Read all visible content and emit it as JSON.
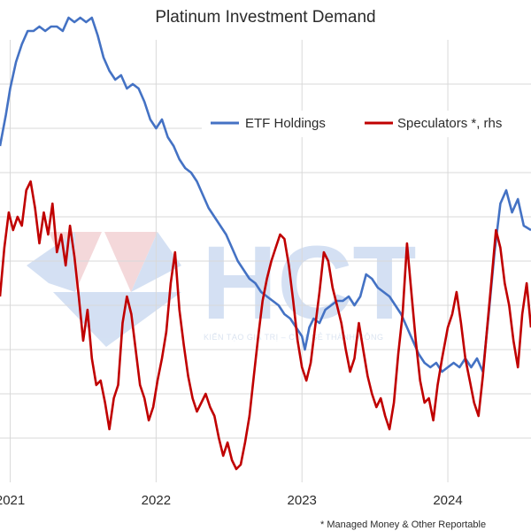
{
  "chart_data": {
    "type": "line",
    "title": "Platinum Investment Demand",
    "xlabel": "",
    "ylabel": "",
    "xlim": [
      2020.93,
      2024.57
    ],
    "ylim": [
      0,
      10
    ],
    "x_ticks": [
      2021,
      2022,
      2023,
      2024
    ],
    "x_tick_labels": [
      "2021",
      "2022",
      "2023",
      "2024"
    ],
    "y_gridlines": [
      1,
      2,
      3,
      4,
      5,
      6,
      7,
      8,
      9
    ],
    "x_gridlines": [
      2021,
      2022,
      2023,
      2024
    ],
    "grid": true,
    "legend_position": "top-right",
    "footnote": "* Managed Money & Other Reportable",
    "watermark": {
      "logo_text": "HCT",
      "tagline": "KIẾN TẠO GIÁ TRỊ – CHIA SẺ THÀNH CÔNG"
    },
    "series": [
      {
        "name": "ETF Holdings",
        "color": "#4472c4",
        "points": [
          [
            2020.93,
            7.6
          ],
          [
            2020.97,
            8.3
          ],
          [
            2021.0,
            8.9
          ],
          [
            2021.04,
            9.5
          ],
          [
            2021.08,
            9.9
          ],
          [
            2021.12,
            10.2
          ],
          [
            2021.16,
            10.2
          ],
          [
            2021.2,
            10.3
          ],
          [
            2021.24,
            10.2
          ],
          [
            2021.28,
            10.3
          ],
          [
            2021.32,
            10.3
          ],
          [
            2021.36,
            10.2
          ],
          [
            2021.4,
            10.5
          ],
          [
            2021.44,
            10.4
          ],
          [
            2021.48,
            10.5
          ],
          [
            2021.52,
            10.4
          ],
          [
            2021.56,
            10.5
          ],
          [
            2021.6,
            10.1
          ],
          [
            2021.64,
            9.6
          ],
          [
            2021.68,
            9.3
          ],
          [
            2021.72,
            9.1
          ],
          [
            2021.76,
            9.2
          ],
          [
            2021.8,
            8.9
          ],
          [
            2021.84,
            9.0
          ],
          [
            2021.88,
            8.9
          ],
          [
            2021.92,
            8.6
          ],
          [
            2021.96,
            8.2
          ],
          [
            2022.0,
            8.0
          ],
          [
            2022.04,
            8.2
          ],
          [
            2022.08,
            7.8
          ],
          [
            2022.12,
            7.6
          ],
          [
            2022.16,
            7.3
          ],
          [
            2022.2,
            7.1
          ],
          [
            2022.24,
            7.0
          ],
          [
            2022.28,
            6.8
          ],
          [
            2022.32,
            6.5
          ],
          [
            2022.36,
            6.2
          ],
          [
            2022.4,
            6.0
          ],
          [
            2022.44,
            5.8
          ],
          [
            2022.48,
            5.6
          ],
          [
            2022.52,
            5.3
          ],
          [
            2022.56,
            5.0
          ],
          [
            2022.6,
            4.8
          ],
          [
            2022.64,
            4.6
          ],
          [
            2022.68,
            4.5
          ],
          [
            2022.72,
            4.3
          ],
          [
            2022.76,
            4.2
          ],
          [
            2022.8,
            4.1
          ],
          [
            2022.84,
            4.0
          ],
          [
            2022.88,
            3.8
          ],
          [
            2022.92,
            3.7
          ],
          [
            2022.96,
            3.5
          ],
          [
            2023.0,
            3.3
          ],
          [
            2023.02,
            3.0
          ],
          [
            2023.05,
            3.5
          ],
          [
            2023.08,
            3.7
          ],
          [
            2023.12,
            3.6
          ],
          [
            2023.16,
            3.9
          ],
          [
            2023.2,
            4.0
          ],
          [
            2023.24,
            4.1
          ],
          [
            2023.28,
            4.1
          ],
          [
            2023.32,
            4.2
          ],
          [
            2023.36,
            4.0
          ],
          [
            2023.4,
            4.2
          ],
          [
            2023.44,
            4.7
          ],
          [
            2023.48,
            4.6
          ],
          [
            2023.52,
            4.4
          ],
          [
            2023.56,
            4.3
          ],
          [
            2023.6,
            4.2
          ],
          [
            2023.64,
            4.0
          ],
          [
            2023.68,
            3.8
          ],
          [
            2023.72,
            3.5
          ],
          [
            2023.76,
            3.2
          ],
          [
            2023.8,
            2.9
          ],
          [
            2023.84,
            2.7
          ],
          [
            2023.88,
            2.6
          ],
          [
            2023.92,
            2.7
          ],
          [
            2023.96,
            2.5
          ],
          [
            2024.0,
            2.6
          ],
          [
            2024.04,
            2.7
          ],
          [
            2024.08,
            2.6
          ],
          [
            2024.12,
            2.8
          ],
          [
            2024.16,
            2.6
          ],
          [
            2024.2,
            2.8
          ],
          [
            2024.24,
            2.5
          ],
          [
            2024.28,
            3.8
          ],
          [
            2024.32,
            5.2
          ],
          [
            2024.36,
            6.3
          ],
          [
            2024.4,
            6.6
          ],
          [
            2024.44,
            6.1
          ],
          [
            2024.48,
            6.4
          ],
          [
            2024.52,
            5.8
          ],
          [
            2024.57,
            5.7
          ]
        ]
      },
      {
        "name": "Speculators *, rhs",
        "color": "#c00000",
        "points": [
          [
            2020.93,
            4.2
          ],
          [
            2020.96,
            5.3
          ],
          [
            2020.99,
            6.1
          ],
          [
            2021.02,
            5.7
          ],
          [
            2021.05,
            6.0
          ],
          [
            2021.08,
            5.8
          ],
          [
            2021.11,
            6.6
          ],
          [
            2021.14,
            6.8
          ],
          [
            2021.17,
            6.2
          ],
          [
            2021.2,
            5.4
          ],
          [
            2021.23,
            6.1
          ],
          [
            2021.26,
            5.6
          ],
          [
            2021.29,
            6.3
          ],
          [
            2021.32,
            5.2
          ],
          [
            2021.35,
            5.6
          ],
          [
            2021.38,
            4.9
          ],
          [
            2021.41,
            5.8
          ],
          [
            2021.44,
            5.1
          ],
          [
            2021.47,
            4.2
          ],
          [
            2021.5,
            3.2
          ],
          [
            2021.53,
            3.9
          ],
          [
            2021.56,
            2.8
          ],
          [
            2021.59,
            2.2
          ],
          [
            2021.62,
            2.3
          ],
          [
            2021.65,
            1.8
          ],
          [
            2021.68,
            1.2
          ],
          [
            2021.71,
            1.9
          ],
          [
            2021.74,
            2.2
          ],
          [
            2021.77,
            3.6
          ],
          [
            2021.8,
            4.2
          ],
          [
            2021.83,
            3.8
          ],
          [
            2021.86,
            3.0
          ],
          [
            2021.89,
            2.2
          ],
          [
            2021.92,
            1.9
          ],
          [
            2021.95,
            1.4
          ],
          [
            2021.98,
            1.7
          ],
          [
            2022.01,
            2.3
          ],
          [
            2022.04,
            2.8
          ],
          [
            2022.07,
            3.4
          ],
          [
            2022.1,
            4.5
          ],
          [
            2022.13,
            5.2
          ],
          [
            2022.16,
            3.9
          ],
          [
            2022.19,
            3.1
          ],
          [
            2022.22,
            2.4
          ],
          [
            2022.25,
            1.9
          ],
          [
            2022.28,
            1.6
          ],
          [
            2022.31,
            1.8
          ],
          [
            2022.34,
            2.0
          ],
          [
            2022.37,
            1.7
          ],
          [
            2022.4,
            1.5
          ],
          [
            2022.43,
            1.0
          ],
          [
            2022.46,
            0.6
          ],
          [
            2022.49,
            0.9
          ],
          [
            2022.52,
            0.5
          ],
          [
            2022.55,
            0.3
          ],
          [
            2022.58,
            0.4
          ],
          [
            2022.61,
            0.9
          ],
          [
            2022.64,
            1.5
          ],
          [
            2022.67,
            2.4
          ],
          [
            2022.7,
            3.3
          ],
          [
            2022.73,
            4.1
          ],
          [
            2022.76,
            4.6
          ],
          [
            2022.79,
            5.0
          ],
          [
            2022.82,
            5.3
          ],
          [
            2022.85,
            5.6
          ],
          [
            2022.88,
            5.5
          ],
          [
            2022.91,
            4.9
          ],
          [
            2022.94,
            4.1
          ],
          [
            2022.97,
            3.2
          ],
          [
            2023.0,
            2.6
          ],
          [
            2023.03,
            2.3
          ],
          [
            2023.06,
            2.7
          ],
          [
            2023.09,
            3.5
          ],
          [
            2023.12,
            4.3
          ],
          [
            2023.15,
            5.2
          ],
          [
            2023.18,
            5.0
          ],
          [
            2023.21,
            4.4
          ],
          [
            2023.24,
            4.0
          ],
          [
            2023.27,
            3.6
          ],
          [
            2023.3,
            3.0
          ],
          [
            2023.33,
            2.5
          ],
          [
            2023.36,
            2.8
          ],
          [
            2023.39,
            3.6
          ],
          [
            2023.42,
            3.0
          ],
          [
            2023.45,
            2.4
          ],
          [
            2023.48,
            2.0
          ],
          [
            2023.51,
            1.7
          ],
          [
            2023.54,
            1.9
          ],
          [
            2023.57,
            1.5
          ],
          [
            2023.6,
            1.2
          ],
          [
            2023.63,
            1.8
          ],
          [
            2023.66,
            2.9
          ],
          [
            2023.69,
            3.8
          ],
          [
            2023.72,
            5.4
          ],
          [
            2023.75,
            4.3
          ],
          [
            2023.78,
            3.2
          ],
          [
            2023.81,
            2.3
          ],
          [
            2023.84,
            1.8
          ],
          [
            2023.87,
            1.9
          ],
          [
            2023.9,
            1.4
          ],
          [
            2023.93,
            2.2
          ],
          [
            2023.96,
            2.8
          ],
          [
            2024.0,
            3.5
          ],
          [
            2024.03,
            3.8
          ],
          [
            2024.06,
            4.3
          ],
          [
            2024.09,
            3.6
          ],
          [
            2024.12,
            2.8
          ],
          [
            2024.15,
            2.3
          ],
          [
            2024.18,
            1.8
          ],
          [
            2024.21,
            1.5
          ],
          [
            2024.24,
            2.4
          ],
          [
            2024.27,
            3.5
          ],
          [
            2024.3,
            4.6
          ],
          [
            2024.33,
            5.7
          ],
          [
            2024.36,
            5.3
          ],
          [
            2024.39,
            4.5
          ],
          [
            2024.42,
            4.0
          ],
          [
            2024.45,
            3.2
          ],
          [
            2024.48,
            2.6
          ],
          [
            2024.51,
            3.8
          ],
          [
            2024.54,
            4.5
          ],
          [
            2024.57,
            3.5
          ]
        ]
      }
    ]
  }
}
